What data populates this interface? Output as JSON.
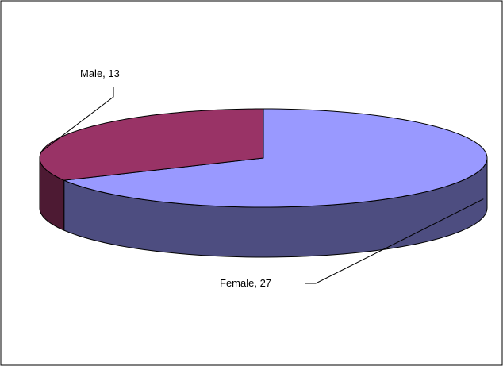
{
  "chart_data": {
    "type": "pie",
    "style": "3d",
    "categories": [
      "Female",
      "Male"
    ],
    "values": [
      27,
      13
    ],
    "colors": {
      "Female": "#9999ff",
      "Male": "#993366"
    },
    "data_labels": [
      "Female, 27",
      "Male, 13"
    ],
    "title": "",
    "legend": "none"
  }
}
